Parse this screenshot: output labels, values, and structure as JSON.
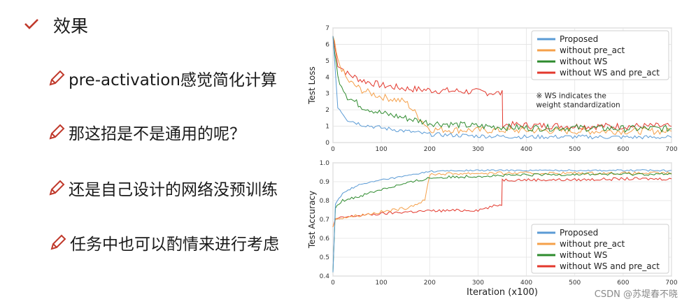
{
  "slide": {
    "title": "效果",
    "bullets": [
      "pre-activation感觉简化计算",
      "那这招是不是通用的呢？",
      "还是自己设计的网络没预训练",
      "任务中也可以酌情来进行考虑"
    ],
    "watermark": "CSDN @苏堤春不晓"
  },
  "colors": {
    "accent": "#c0392b",
    "proposed": "#5b9bd5",
    "without_pre_act": "#f5a04a",
    "without_ws": "#2e8b2e",
    "without_ws_and_pre_act": "#e3382d"
  },
  "chart_data": [
    {
      "type": "line",
      "ylabel": "Test Loss",
      "xlabel": "",
      "xlim": [
        0,
        700
      ],
      "ylim": [
        0,
        7
      ],
      "x_ticks": [
        0,
        100,
        200,
        300,
        400,
        500,
        600,
        700
      ],
      "y_ticks": [
        0,
        1,
        2,
        3,
        4,
        5,
        6,
        7
      ],
      "grid": true,
      "legend": "top-right",
      "annotation": "※ WS indicates the\n weight standardization",
      "series": [
        {
          "name": "Proposed",
          "x": [
            0,
            10,
            30,
            60,
            100,
            150,
            200,
            300,
            400,
            500,
            600,
            700
          ],
          "values": [
            6.5,
            2.2,
            1.4,
            1.1,
            0.9,
            0.7,
            0.5,
            0.4,
            0.35,
            0.35,
            0.33,
            0.32
          ]
        },
        {
          "name": "without pre_act",
          "x": [
            0,
            10,
            30,
            60,
            100,
            150,
            200,
            300,
            400,
            500,
            600,
            700
          ],
          "values": [
            6.5,
            5.0,
            3.8,
            3.2,
            2.8,
            2.5,
            0.8,
            0.75,
            0.75,
            0.7,
            0.7,
            0.7
          ]
        },
        {
          "name": "without WS",
          "x": [
            0,
            10,
            30,
            60,
            100,
            150,
            200,
            300,
            400,
            500,
            600,
            700
          ],
          "values": [
            6.5,
            4.0,
            2.8,
            2.2,
            1.8,
            1.5,
            1.2,
            1.0,
            0.9,
            0.9,
            0.85,
            0.85
          ]
        },
        {
          "name": "without WS and pre_act",
          "x": [
            0,
            10,
            30,
            60,
            100,
            150,
            200,
            300,
            350,
            351,
            400,
            500,
            600,
            700
          ],
          "values": [
            6.5,
            4.8,
            4.2,
            3.8,
            3.5,
            3.3,
            3.2,
            3.1,
            3.0,
            1.1,
            1.05,
            1.0,
            1.0,
            1.0
          ]
        }
      ]
    },
    {
      "type": "line",
      "ylabel": "Test Accuracy",
      "xlabel": "Iteration (x100)",
      "xlim": [
        0,
        700
      ],
      "ylim": [
        0.4,
        1.0
      ],
      "x_ticks": [
        0,
        100,
        200,
        300,
        400,
        500,
        600,
        700
      ],
      "y_ticks": [
        0.4,
        0.5,
        0.6,
        0.7,
        0.8,
        0.9,
        1.0
      ],
      "grid": true,
      "legend": "bottom-right",
      "series": [
        {
          "name": "Proposed",
          "x": [
            0,
            5,
            20,
            50,
            100,
            150,
            200,
            300,
            400,
            500,
            600,
            700
          ],
          "values": [
            0.42,
            0.78,
            0.84,
            0.88,
            0.91,
            0.93,
            0.955,
            0.96,
            0.96,
            0.96,
            0.96,
            0.96
          ]
        },
        {
          "name": "without pre_act",
          "x": [
            0,
            5,
            20,
            50,
            100,
            150,
            190,
            200,
            300,
            400,
            500,
            600,
            700
          ],
          "values": [
            0.66,
            0.7,
            0.71,
            0.72,
            0.74,
            0.76,
            0.8,
            0.94,
            0.945,
            0.945,
            0.945,
            0.945,
            0.945
          ]
        },
        {
          "name": "without WS",
          "x": [
            0,
            5,
            20,
            50,
            100,
            150,
            200,
            300,
            400,
            500,
            600,
            700
          ],
          "values": [
            0.42,
            0.76,
            0.8,
            0.82,
            0.86,
            0.89,
            0.92,
            0.93,
            0.935,
            0.94,
            0.94,
            0.94
          ]
        },
        {
          "name": "without WS and pre_act",
          "x": [
            0,
            5,
            20,
            50,
            100,
            150,
            200,
            300,
            349,
            350,
            400,
            500,
            600,
            700
          ],
          "values": [
            0.66,
            0.7,
            0.71,
            0.72,
            0.73,
            0.74,
            0.745,
            0.75,
            0.78,
            0.91,
            0.91,
            0.91,
            0.915,
            0.915
          ]
        }
      ]
    }
  ]
}
